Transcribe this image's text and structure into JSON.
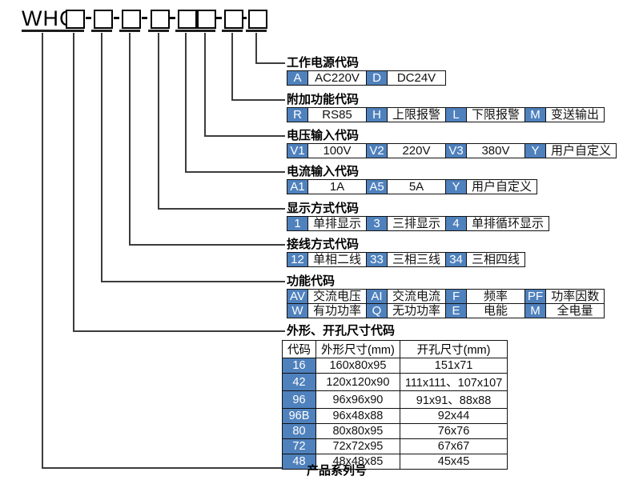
{
  "model": {
    "prefix": "WHC",
    "segment_boxes": 8
  },
  "colors": {
    "accent": "#4f81bd",
    "line": "#3c3c3c",
    "border": "#111111"
  },
  "sections": [
    {
      "id": "power",
      "label": "工作电源代码",
      "rows": [
        [
          {
            "code": "A",
            "desc": "AC220V"
          },
          {
            "code": "D",
            "desc": "DC24V"
          }
        ]
      ]
    },
    {
      "id": "additional-function",
      "label": "附加功能代码",
      "rows": [
        [
          {
            "code": "R",
            "desc": "RS85"
          },
          {
            "code": "H",
            "desc": "上限报警"
          },
          {
            "code": "L",
            "desc": "下限报警"
          },
          {
            "code": "M",
            "desc": "变送输出"
          }
        ]
      ]
    },
    {
      "id": "voltage-input",
      "label": "电压输入代码",
      "rows": [
        [
          {
            "code": "V1",
            "desc": "100V"
          },
          {
            "code": "V2",
            "desc": "220V"
          },
          {
            "code": "V3",
            "desc": "380V"
          },
          {
            "code": "Y",
            "desc": "用户自定义"
          }
        ]
      ]
    },
    {
      "id": "current-input",
      "label": "电流输入代码",
      "rows": [
        [
          {
            "code": "A1",
            "desc": "1A"
          },
          {
            "code": "A5",
            "desc": "5A"
          },
          {
            "code": "Y",
            "desc": "用户自定义"
          }
        ]
      ]
    },
    {
      "id": "display-mode",
      "label": "显示方式代码",
      "rows": [
        [
          {
            "code": "1",
            "desc": "单排显示"
          },
          {
            "code": "3",
            "desc": "三排显示"
          },
          {
            "code": "4",
            "desc": "单排循环显示"
          }
        ]
      ]
    },
    {
      "id": "wiring-mode",
      "label": "接线方式代码",
      "rows": [
        [
          {
            "code": "12",
            "desc": "单相二线"
          },
          {
            "code": "33",
            "desc": "三相三线"
          },
          {
            "code": "34",
            "desc": "三相四线"
          }
        ]
      ]
    },
    {
      "id": "function",
      "label": "功能代码",
      "rows": [
        [
          {
            "code": "AV",
            "desc": "交流电压"
          },
          {
            "code": "AI",
            "desc": "交流电流"
          },
          {
            "code": "F",
            "desc": "频率"
          },
          {
            "code": "PF",
            "desc": "功率因数"
          }
        ],
        [
          {
            "code": "W",
            "desc": "有功功率"
          },
          {
            "code": "Q",
            "desc": "无功功率"
          },
          {
            "code": "E",
            "desc": "电能"
          },
          {
            "code": "M",
            "desc": "全电量"
          }
        ]
      ]
    },
    {
      "id": "dimensions",
      "label": "外形、开孔尺寸代码",
      "table": {
        "headers": [
          "代码",
          "外形尺寸(mm)",
          "开孔尺寸(mm)"
        ],
        "rows": [
          [
            "16",
            "160x80x95",
            "151x71"
          ],
          [
            "42",
            "120x120x90",
            "111x111、107x107"
          ],
          [
            "96",
            "96x96x90",
            "91x91、88x88"
          ],
          [
            "96B",
            "96x48x88",
            "92x44"
          ],
          [
            "80",
            "80x80x95",
            "76x76"
          ],
          [
            "72",
            "72x72x95",
            "67x67"
          ],
          [
            "48",
            "48x48x85",
            "45x45"
          ]
        ]
      }
    },
    {
      "id": "series",
      "label": "产品系列号"
    }
  ]
}
